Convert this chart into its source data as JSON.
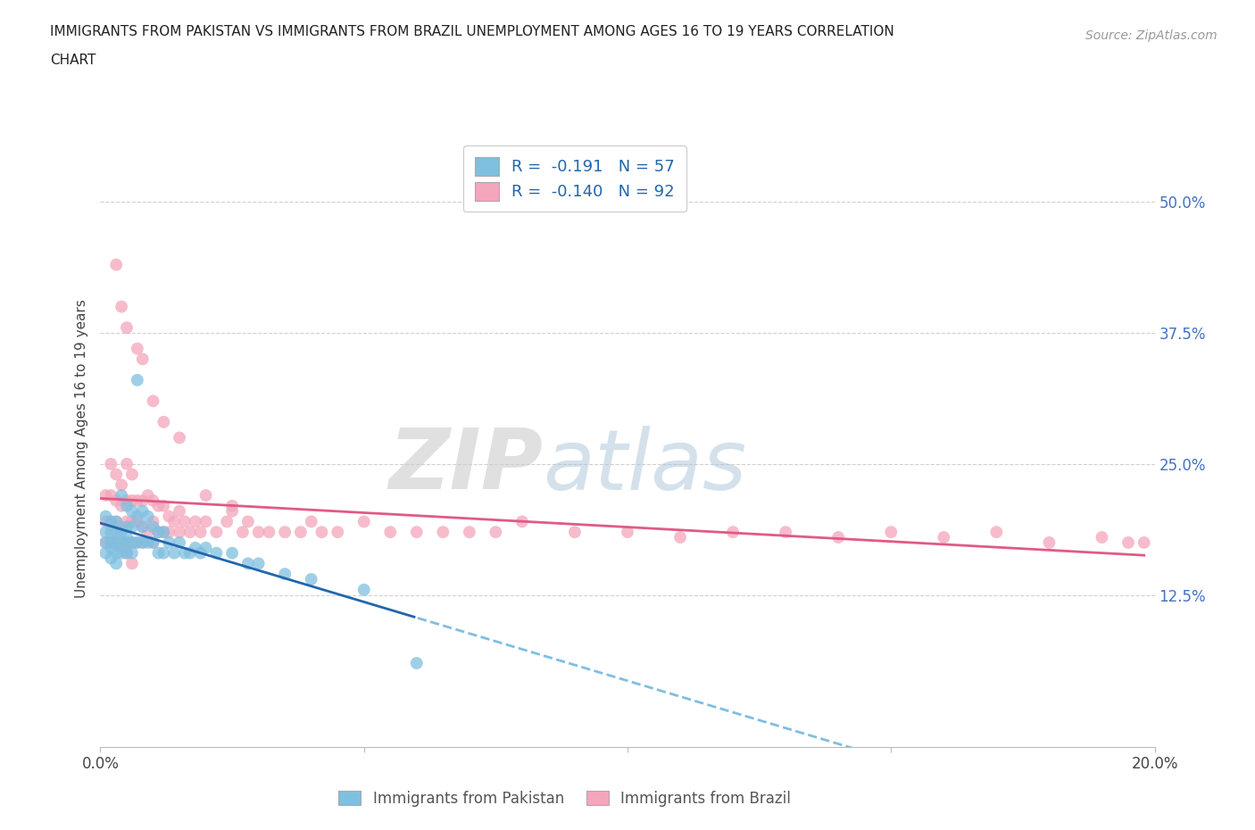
{
  "title_line1": "IMMIGRANTS FROM PAKISTAN VS IMMIGRANTS FROM BRAZIL UNEMPLOYMENT AMONG AGES 16 TO 19 YEARS CORRELATION",
  "title_line2": "CHART",
  "source": "Source: ZipAtlas.com",
  "ylabel": "Unemployment Among Ages 16 to 19 years",
  "pakistan_color": "#7fbfdf",
  "brazil_color": "#f4a6bc",
  "pakistan_R": -0.191,
  "pakistan_N": 57,
  "brazil_R": -0.14,
  "brazil_N": 92,
  "line_pakistan_solid_color": "#2166ac",
  "line_pakistan_dash_color": "#7fbfdf",
  "line_brazil_color": "#e05a85",
  "xlim": [
    0.0,
    0.2
  ],
  "ylim": [
    -0.02,
    0.55
  ],
  "xtick_positions": [
    0.0,
    0.05,
    0.1,
    0.15,
    0.2
  ],
  "xtick_labels": [
    "0.0%",
    "",
    "",
    "",
    "20.0%"
  ],
  "ytick_positions": [
    0.125,
    0.25,
    0.375,
    0.5
  ],
  "ytick_labels": [
    "12.5%",
    "25.0%",
    "37.5%",
    "50.0%"
  ],
  "pakistan_x": [
    0.001,
    0.001,
    0.001,
    0.001,
    0.002,
    0.002,
    0.002,
    0.002,
    0.002,
    0.003,
    0.003,
    0.003,
    0.003,
    0.003,
    0.004,
    0.004,
    0.004,
    0.004,
    0.005,
    0.005,
    0.005,
    0.005,
    0.005,
    0.006,
    0.006,
    0.006,
    0.006,
    0.007,
    0.007,
    0.007,
    0.008,
    0.008,
    0.008,
    0.009,
    0.009,
    0.01,
    0.01,
    0.011,
    0.011,
    0.012,
    0.012,
    0.013,
    0.014,
    0.015,
    0.016,
    0.017,
    0.018,
    0.019,
    0.02,
    0.022,
    0.025,
    0.028,
    0.03,
    0.035,
    0.04,
    0.05,
    0.06
  ],
  "pakistan_y": [
    0.2,
    0.185,
    0.175,
    0.165,
    0.195,
    0.185,
    0.175,
    0.17,
    0.16,
    0.195,
    0.185,
    0.175,
    0.165,
    0.155,
    0.22,
    0.185,
    0.175,
    0.165,
    0.21,
    0.19,
    0.18,
    0.175,
    0.165,
    0.205,
    0.19,
    0.175,
    0.165,
    0.33,
    0.2,
    0.175,
    0.205,
    0.19,
    0.175,
    0.2,
    0.175,
    0.19,
    0.175,
    0.185,
    0.165,
    0.185,
    0.165,
    0.175,
    0.165,
    0.175,
    0.165,
    0.165,
    0.17,
    0.165,
    0.17,
    0.165,
    0.165,
    0.155,
    0.155,
    0.145,
    0.14,
    0.13,
    0.06
  ],
  "brazil_x": [
    0.001,
    0.001,
    0.001,
    0.002,
    0.002,
    0.002,
    0.002,
    0.003,
    0.003,
    0.003,
    0.003,
    0.004,
    0.004,
    0.004,
    0.004,
    0.005,
    0.005,
    0.005,
    0.005,
    0.006,
    0.006,
    0.006,
    0.006,
    0.007,
    0.007,
    0.007,
    0.008,
    0.008,
    0.008,
    0.009,
    0.009,
    0.01,
    0.01,
    0.01,
    0.011,
    0.011,
    0.012,
    0.012,
    0.013,
    0.013,
    0.014,
    0.015,
    0.015,
    0.016,
    0.017,
    0.018,
    0.019,
    0.02,
    0.022,
    0.024,
    0.025,
    0.027,
    0.028,
    0.03,
    0.032,
    0.035,
    0.038,
    0.04,
    0.042,
    0.045,
    0.05,
    0.055,
    0.06,
    0.065,
    0.07,
    0.075,
    0.08,
    0.09,
    0.1,
    0.11,
    0.12,
    0.13,
    0.14,
    0.15,
    0.16,
    0.17,
    0.18,
    0.19,
    0.195,
    0.198,
    0.003,
    0.004,
    0.005,
    0.007,
    0.008,
    0.01,
    0.012,
    0.015,
    0.02,
    0.025,
    0.005,
    0.006
  ],
  "brazil_y": [
    0.22,
    0.195,
    0.175,
    0.25,
    0.22,
    0.195,
    0.175,
    0.24,
    0.215,
    0.195,
    0.175,
    0.23,
    0.21,
    0.19,
    0.17,
    0.25,
    0.215,
    0.195,
    0.175,
    0.24,
    0.215,
    0.195,
    0.175,
    0.215,
    0.195,
    0.175,
    0.215,
    0.19,
    0.175,
    0.22,
    0.185,
    0.215,
    0.195,
    0.175,
    0.21,
    0.185,
    0.21,
    0.185,
    0.2,
    0.185,
    0.195,
    0.205,
    0.185,
    0.195,
    0.185,
    0.195,
    0.185,
    0.195,
    0.185,
    0.195,
    0.205,
    0.185,
    0.195,
    0.185,
    0.185,
    0.185,
    0.185,
    0.195,
    0.185,
    0.185,
    0.195,
    0.185,
    0.185,
    0.185,
    0.185,
    0.185,
    0.195,
    0.185,
    0.185,
    0.18,
    0.185,
    0.185,
    0.18,
    0.185,
    0.18,
    0.185,
    0.175,
    0.18,
    0.175,
    0.175,
    0.44,
    0.4,
    0.38,
    0.36,
    0.35,
    0.31,
    0.29,
    0.275,
    0.22,
    0.21,
    0.165,
    0.155
  ]
}
